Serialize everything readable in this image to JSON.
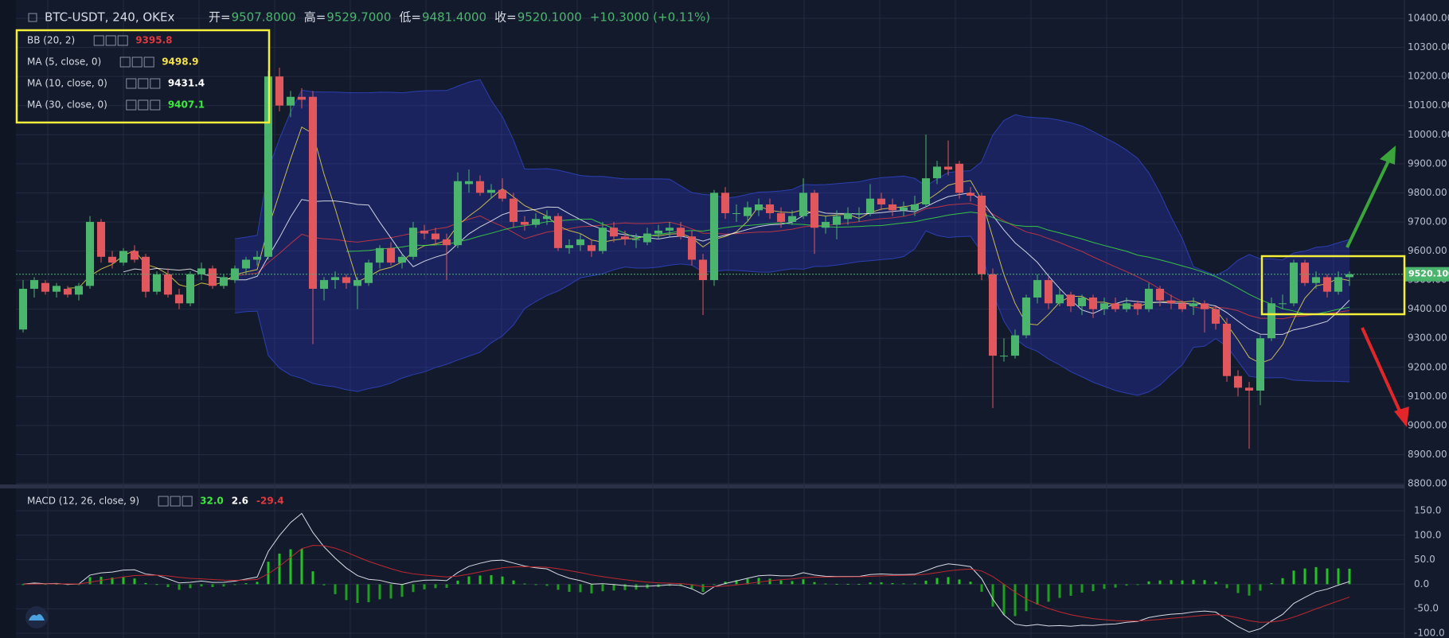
{
  "chart_data": {
    "type": "candlestick",
    "title": "BTC-USDT, 240, OKEx",
    "ohlc": {
      "open_label": "开=",
      "open": "9507.8000",
      "high_label": "高=",
      "high": "9529.7000",
      "low_label": "低=",
      "low": "9481.4000",
      "close_label": "收=",
      "close": "9520.1000",
      "change": "+10.3000 (+0.11%)"
    },
    "legends": [
      {
        "name": "BB (20, 2)",
        "value": "9395.8",
        "color": "#e0393e"
      },
      {
        "name": "MA (5, close, 0)",
        "value": "9498.9",
        "color": "#f5e14b"
      },
      {
        "name": "MA (10, close, 0)",
        "value": "9431.4",
        "color": "#ffffff"
      },
      {
        "name": "MA (30, close, 0)",
        "value": "9407.1",
        "color": "#3ee83e"
      }
    ],
    "macd_legend": {
      "name": "MACD (12, 26, close, 9)",
      "values": [
        "32.0",
        "2.6",
        "-29.4"
      ],
      "colors": [
        "#3ee83e",
        "#ffffff",
        "#e0393e"
      ]
    },
    "up_color": "#4bb56e",
    "down_color": "#e0575d",
    "last_price": "9520.1000",
    "ylim": [
      8800,
      10400
    ],
    "yticks": [
      {
        "value": 8800,
        "label": "8800.00"
      },
      {
        "value": 8900,
        "label": "8900.00"
      },
      {
        "value": 9000,
        "label": "9000.00"
      },
      {
        "value": 9100,
        "label": "9100.00"
      },
      {
        "value": 9200,
        "label": "9200.00"
      },
      {
        "value": 9300,
        "label": "9300.00"
      },
      {
        "value": 9400,
        "label": "9400.00"
      },
      {
        "value": 9500,
        "label": "9500.00"
      },
      {
        "value": 9600,
        "label": "9600.00"
      },
      {
        "value": 9700,
        "label": "9700.00"
      },
      {
        "value": 9800,
        "label": "9800.00"
      },
      {
        "value": 9900,
        "label": "9900.00"
      },
      {
        "value": 10000,
        "label": "10000.00"
      },
      {
        "value": 10100,
        "label": "10100.00"
      },
      {
        "value": 10200,
        "label": "10200.00"
      },
      {
        "value": 10300,
        "label": "10300.00"
      },
      {
        "value": 10400,
        "label": "10400.00"
      }
    ],
    "y2lim": [
      -100,
      150
    ],
    "y2ticks": [
      {
        "value": 150,
        "label": "150.0"
      },
      {
        "value": 100,
        "label": "100.0"
      },
      {
        "value": 50,
        "label": "50.0"
      },
      {
        "value": 0,
        "label": "0.0"
      },
      {
        "value": -50,
        "label": "-50.0"
      },
      {
        "value": -100,
        "label": "-100.0"
      }
    ],
    "candles": [
      [
        9330,
        9500,
        9320,
        9470
      ],
      [
        9470,
        9510,
        9440,
        9500
      ],
      [
        9490,
        9500,
        9450,
        9460
      ],
      [
        9460,
        9490,
        9440,
        9480
      ],
      [
        9470,
        9480,
        9440,
        9450
      ],
      [
        9450,
        9490,
        9430,
        9480
      ],
      [
        9480,
        9720,
        9470,
        9700
      ],
      [
        9700,
        9710,
        9560,
        9580
      ],
      [
        9580,
        9600,
        9540,
        9560
      ],
      [
        9560,
        9610,
        9550,
        9600
      ],
      [
        9600,
        9620,
        9560,
        9570
      ],
      [
        9580,
        9590,
        9440,
        9460
      ],
      [
        9460,
        9530,
        9450,
        9520
      ],
      [
        9520,
        9540,
        9440,
        9450
      ],
      [
        9450,
        9470,
        9400,
        9420
      ],
      [
        9420,
        9530,
        9410,
        9520
      ],
      [
        9520,
        9560,
        9500,
        9540
      ],
      [
        9540,
        9550,
        9470,
        9480
      ],
      [
        9480,
        9520,
        9470,
        9510
      ],
      [
        9500,
        9550,
        9490,
        9540
      ],
      [
        9540,
        9580,
        9520,
        9570
      ],
      [
        9570,
        9600,
        9550,
        9580
      ],
      [
        9580,
        10220,
        9570,
        10200
      ],
      [
        10200,
        10230,
        10080,
        10100
      ],
      [
        10100,
        10150,
        10060,
        10130
      ],
      [
        10130,
        10160,
        10090,
        10120
      ],
      [
        10130,
        10150,
        9280,
        9470
      ],
      [
        9470,
        9510,
        9430,
        9500
      ],
      [
        9500,
        9530,
        9470,
        9510
      ],
      [
        9510,
        9520,
        9470,
        9490
      ],
      [
        9480,
        9510,
        9400,
        9500
      ],
      [
        9490,
        9570,
        9480,
        9560
      ],
      [
        9560,
        9620,
        9540,
        9610
      ],
      [
        9610,
        9630,
        9550,
        9560
      ],
      [
        9560,
        9590,
        9540,
        9580
      ],
      [
        9580,
        9700,
        9570,
        9680
      ],
      [
        9670,
        9690,
        9640,
        9660
      ],
      [
        9660,
        9680,
        9620,
        9640
      ],
      [
        9640,
        9660,
        9500,
        9620
      ],
      [
        9620,
        9870,
        9610,
        9840
      ],
      [
        9830,
        9880,
        9800,
        9840
      ],
      [
        9840,
        9860,
        9790,
        9800
      ],
      [
        9800,
        9830,
        9780,
        9810
      ],
      [
        9810,
        9850,
        9770,
        9780
      ],
      [
        9780,
        9800,
        9680,
        9700
      ],
      [
        9700,
        9720,
        9670,
        9690
      ],
      [
        9690,
        9730,
        9680,
        9710
      ],
      [
        9710,
        9740,
        9690,
        9720
      ],
      [
        9720,
        9730,
        9600,
        9610
      ],
      [
        9610,
        9640,
        9590,
        9620
      ],
      [
        9620,
        9660,
        9600,
        9640
      ],
      [
        9620,
        9640,
        9580,
        9600
      ],
      [
        9600,
        9700,
        9590,
        9680
      ],
      [
        9680,
        9700,
        9630,
        9650
      ],
      [
        9650,
        9670,
        9620,
        9640
      ],
      [
        9640,
        9660,
        9610,
        9640
      ],
      [
        9630,
        9680,
        9620,
        9660
      ],
      [
        9660,
        9690,
        9640,
        9670
      ],
      [
        9670,
        9700,
        9650,
        9680
      ],
      [
        9680,
        9700,
        9640,
        9650
      ],
      [
        9650,
        9670,
        9550,
        9570
      ],
      [
        9570,
        9590,
        9380,
        9500
      ],
      [
        9500,
        9810,
        9480,
        9800
      ],
      [
        9800,
        9820,
        9710,
        9730
      ],
      [
        9730,
        9760,
        9700,
        9730
      ],
      [
        9720,
        9770,
        9700,
        9750
      ],
      [
        9740,
        9780,
        9720,
        9760
      ],
      [
        9760,
        9780,
        9710,
        9730
      ],
      [
        9730,
        9750,
        9680,
        9700
      ],
      [
        9700,
        9740,
        9690,
        9720
      ],
      [
        9720,
        9850,
        9710,
        9800
      ],
      [
        9800,
        9810,
        9590,
        9680
      ],
      [
        9680,
        9720,
        9660,
        9700
      ],
      [
        9690,
        9740,
        9640,
        9720
      ],
      [
        9710,
        9750,
        9690,
        9730
      ],
      [
        9730,
        9750,
        9700,
        9730
      ],
      [
        9730,
        9830,
        9720,
        9780
      ],
      [
        9780,
        9800,
        9740,
        9760
      ],
      [
        9760,
        9780,
        9720,
        9740
      ],
      [
        9740,
        9770,
        9720,
        9750
      ],
      [
        9740,
        9790,
        9720,
        9760
      ],
      [
        9760,
        10000,
        9750,
        9850
      ],
      [
        9850,
        9910,
        9830,
        9890
      ],
      [
        9890,
        9980,
        9860,
        9880
      ],
      [
        9900,
        9910,
        9780,
        9800
      ],
      [
        9800,
        9820,
        9770,
        9790
      ],
      [
        9790,
        9800,
        9500,
        9520
      ],
      [
        9520,
        9540,
        9060,
        9240
      ],
      [
        9240,
        9300,
        9220,
        9240
      ],
      [
        9240,
        9330,
        9230,
        9310
      ],
      [
        9310,
        9450,
        9300,
        9440
      ],
      [
        9440,
        9520,
        9420,
        9500
      ],
      [
        9500,
        9510,
        9400,
        9420
      ],
      [
        9420,
        9470,
        9410,
        9450
      ],
      [
        9450,
        9460,
        9390,
        9410
      ],
      [
        9410,
        9450,
        9380,
        9440
      ],
      [
        9440,
        9450,
        9370,
        9400
      ],
      [
        9400,
        9440,
        9380,
        9420
      ],
      [
        9420,
        9440,
        9390,
        9400
      ],
      [
        9400,
        9440,
        9390,
        9420
      ],
      [
        9420,
        9430,
        9380,
        9400
      ],
      [
        9400,
        9490,
        9390,
        9470
      ],
      [
        9470,
        9480,
        9410,
        9430
      ],
      [
        9430,
        9450,
        9400,
        9420
      ],
      [
        9420,
        9430,
        9390,
        9400
      ],
      [
        9410,
        9440,
        9380,
        9420
      ],
      [
        9420,
        9430,
        9320,
        9400
      ],
      [
        9400,
        9410,
        9330,
        9350
      ],
      [
        9350,
        9370,
        9150,
        9170
      ],
      [
        9170,
        9190,
        9100,
        9130
      ],
      [
        9130,
        9150,
        8920,
        9120
      ],
      [
        9120,
        9310,
        9070,
        9300
      ],
      [
        9300,
        9440,
        9290,
        9420
      ],
      [
        9420,
        9450,
        9400,
        9420
      ],
      [
        9420,
        9570,
        9410,
        9560
      ],
      [
        9560,
        9570,
        9480,
        9490
      ],
      [
        9490,
        9530,
        9470,
        9510
      ],
      [
        9510,
        9520,
        9440,
        9460
      ],
      [
        9460,
        9530,
        9450,
        9510
      ],
      [
        9510,
        9530,
        9480,
        9520
      ]
    ]
  }
}
